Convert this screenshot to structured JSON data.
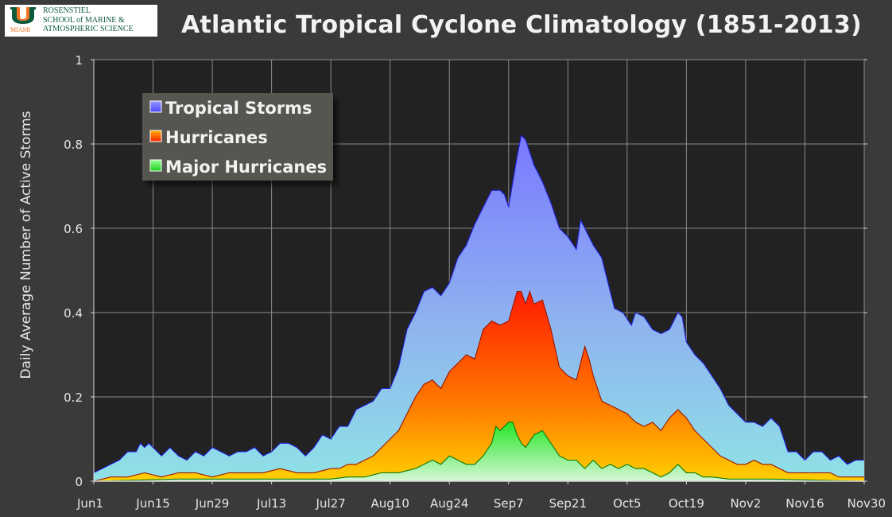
{
  "header": {
    "title": "Atlantic Tropical Cyclone Climatology (1851-2013)",
    "logo_city": "MIAMI",
    "logo_org_lines": [
      "ROSENSTIEL",
      "SCHOOL of MARINE &",
      "ATMOSPHERIC SCIENCE"
    ]
  },
  "chart_data": {
    "type": "area",
    "title": "Atlantic Tropical Cyclone Climatology (1851-2013)",
    "xlabel": "",
    "ylabel": "Daily Average Number of Active Storms",
    "ylim": [
      0,
      1
    ],
    "yticks": [
      0,
      0.2,
      0.4,
      0.6,
      0.8,
      1
    ],
    "ytick_labels": [
      "0",
      "0.2",
      "0.4",
      "0.6",
      "0.8",
      "1"
    ],
    "xlim_days": [
      0,
      182
    ],
    "xticks": [
      {
        "label": "Jun1",
        "day": 0
      },
      {
        "label": "Jun15",
        "day": 14
      },
      {
        "label": "Jun29",
        "day": 28
      },
      {
        "label": "Jul13",
        "day": 42
      },
      {
        "label": "Jul27",
        "day": 56
      },
      {
        "label": "Aug10",
        "day": 70
      },
      {
        "label": "Aug24",
        "day": 84
      },
      {
        "label": "Sep7",
        "day": 98
      },
      {
        "label": "Sep21",
        "day": 112
      },
      {
        "label": "Oct5",
        "day": 126
      },
      {
        "label": "Oct19",
        "day": 140
      },
      {
        "label": "Nov2",
        "day": 154
      },
      {
        "label": "Nov16",
        "day": 168
      },
      {
        "label": "Nov30",
        "day": 182
      }
    ],
    "grid": true,
    "legend_position": "top-left",
    "series": [
      {
        "name": "Tropical Storms",
        "color": "#8080ff",
        "points": [
          [
            0,
            0.02
          ],
          [
            2,
            0.03
          ],
          [
            4,
            0.04
          ],
          [
            6,
            0.05
          ],
          [
            8,
            0.07
          ],
          [
            10,
            0.07
          ],
          [
            11,
            0.09
          ],
          [
            12,
            0.08
          ],
          [
            13,
            0.09
          ],
          [
            14,
            0.08
          ],
          [
            16,
            0.06
          ],
          [
            18,
            0.08
          ],
          [
            20,
            0.06
          ],
          [
            22,
            0.05
          ],
          [
            24,
            0.07
          ],
          [
            26,
            0.06
          ],
          [
            28,
            0.08
          ],
          [
            30,
            0.07
          ],
          [
            32,
            0.06
          ],
          [
            34,
            0.07
          ],
          [
            36,
            0.07
          ],
          [
            38,
            0.08
          ],
          [
            40,
            0.06
          ],
          [
            42,
            0.07
          ],
          [
            44,
            0.09
          ],
          [
            46,
            0.09
          ],
          [
            48,
            0.08
          ],
          [
            50,
            0.06
          ],
          [
            52,
            0.08
          ],
          [
            54,
            0.11
          ],
          [
            56,
            0.1
          ],
          [
            58,
            0.13
          ],
          [
            60,
            0.13
          ],
          [
            62,
            0.17
          ],
          [
            64,
            0.18
          ],
          [
            66,
            0.19
          ],
          [
            68,
            0.22
          ],
          [
            70,
            0.22
          ],
          [
            72,
            0.27
          ],
          [
            74,
            0.36
          ],
          [
            76,
            0.4
          ],
          [
            78,
            0.45
          ],
          [
            80,
            0.46
          ],
          [
            82,
            0.44
          ],
          [
            84,
            0.47
          ],
          [
            86,
            0.53
          ],
          [
            88,
            0.56
          ],
          [
            90,
            0.61
          ],
          [
            92,
            0.65
          ],
          [
            94,
            0.69
          ],
          [
            96,
            0.69
          ],
          [
            97,
            0.68
          ],
          [
            98,
            0.65
          ],
          [
            100,
            0.77
          ],
          [
            101,
            0.82
          ],
          [
            102,
            0.81
          ],
          [
            104,
            0.75
          ],
          [
            106,
            0.71
          ],
          [
            108,
            0.66
          ],
          [
            110,
            0.6
          ],
          [
            112,
            0.58
          ],
          [
            114,
            0.55
          ],
          [
            115,
            0.62
          ],
          [
            116,
            0.6
          ],
          [
            118,
            0.56
          ],
          [
            120,
            0.53
          ],
          [
            122,
            0.45
          ],
          [
            123,
            0.41
          ],
          [
            125,
            0.4
          ],
          [
            127,
            0.37
          ],
          [
            128,
            0.4
          ],
          [
            130,
            0.39
          ],
          [
            132,
            0.36
          ],
          [
            134,
            0.35
          ],
          [
            136,
            0.36
          ],
          [
            138,
            0.4
          ],
          [
            139,
            0.39
          ],
          [
            140,
            0.33
          ],
          [
            142,
            0.3
          ],
          [
            144,
            0.28
          ],
          [
            146,
            0.25
          ],
          [
            148,
            0.22
          ],
          [
            150,
            0.18
          ],
          [
            152,
            0.16
          ],
          [
            154,
            0.14
          ],
          [
            156,
            0.14
          ],
          [
            158,
            0.13
          ],
          [
            160,
            0.15
          ],
          [
            162,
            0.13
          ],
          [
            164,
            0.07
          ],
          [
            166,
            0.07
          ],
          [
            168,
            0.05
          ],
          [
            170,
            0.07
          ],
          [
            172,
            0.07
          ],
          [
            174,
            0.05
          ],
          [
            176,
            0.06
          ],
          [
            178,
            0.04
          ],
          [
            180,
            0.05
          ],
          [
            182,
            0.05
          ]
        ]
      },
      {
        "name": "Hurricanes",
        "color": "#ff3300",
        "points": [
          [
            0,
            0
          ],
          [
            4,
            0.01
          ],
          [
            8,
            0.01
          ],
          [
            12,
            0.02
          ],
          [
            16,
            0.01
          ],
          [
            20,
            0.02
          ],
          [
            24,
            0.02
          ],
          [
            28,
            0.01
          ],
          [
            32,
            0.02
          ],
          [
            36,
            0.02
          ],
          [
            40,
            0.02
          ],
          [
            44,
            0.03
          ],
          [
            48,
            0.02
          ],
          [
            52,
            0.02
          ],
          [
            56,
            0.03
          ],
          [
            58,
            0.03
          ],
          [
            60,
            0.04
          ],
          [
            62,
            0.04
          ],
          [
            64,
            0.05
          ],
          [
            66,
            0.06
          ],
          [
            68,
            0.08
          ],
          [
            70,
            0.1
          ],
          [
            72,
            0.12
          ],
          [
            74,
            0.16
          ],
          [
            76,
            0.2
          ],
          [
            78,
            0.23
          ],
          [
            80,
            0.24
          ],
          [
            82,
            0.22
          ],
          [
            84,
            0.26
          ],
          [
            86,
            0.28
          ],
          [
            88,
            0.3
          ],
          [
            90,
            0.29
          ],
          [
            92,
            0.36
          ],
          [
            94,
            0.38
          ],
          [
            96,
            0.37
          ],
          [
            98,
            0.38
          ],
          [
            100,
            0.45
          ],
          [
            101,
            0.45
          ],
          [
            102,
            0.42
          ],
          [
            103,
            0.45
          ],
          [
            104,
            0.42
          ],
          [
            106,
            0.43
          ],
          [
            108,
            0.36
          ],
          [
            110,
            0.27
          ],
          [
            112,
            0.25
          ],
          [
            114,
            0.24
          ],
          [
            116,
            0.32
          ],
          [
            117,
            0.29
          ],
          [
            118,
            0.25
          ],
          [
            120,
            0.19
          ],
          [
            122,
            0.18
          ],
          [
            124,
            0.17
          ],
          [
            126,
            0.16
          ],
          [
            128,
            0.14
          ],
          [
            130,
            0.13
          ],
          [
            132,
            0.14
          ],
          [
            134,
            0.12
          ],
          [
            136,
            0.15
          ],
          [
            138,
            0.17
          ],
          [
            140,
            0.15
          ],
          [
            142,
            0.12
          ],
          [
            144,
            0.1
          ],
          [
            146,
            0.08
          ],
          [
            148,
            0.06
          ],
          [
            150,
            0.05
          ],
          [
            152,
            0.04
          ],
          [
            154,
            0.04
          ],
          [
            156,
            0.05
          ],
          [
            158,
            0.04
          ],
          [
            160,
            0.04
          ],
          [
            162,
            0.03
          ],
          [
            164,
            0.02
          ],
          [
            166,
            0.02
          ],
          [
            168,
            0.02
          ],
          [
            170,
            0.02
          ],
          [
            172,
            0.02
          ],
          [
            174,
            0.02
          ],
          [
            176,
            0.01
          ],
          [
            178,
            0.01
          ],
          [
            180,
            0.01
          ],
          [
            182,
            0.01
          ]
        ]
      },
      {
        "name": "Major Hurricanes",
        "color": "#33ee33",
        "points": [
          [
            0,
            0
          ],
          [
            20,
            0.005
          ],
          [
            40,
            0.005
          ],
          [
            56,
            0.005
          ],
          [
            60,
            0.01
          ],
          [
            64,
            0.01
          ],
          [
            68,
            0.02
          ],
          [
            72,
            0.02
          ],
          [
            76,
            0.03
          ],
          [
            80,
            0.05
          ],
          [
            82,
            0.04
          ],
          [
            84,
            0.06
          ],
          [
            86,
            0.05
          ],
          [
            88,
            0.04
          ],
          [
            90,
            0.04
          ],
          [
            92,
            0.06
          ],
          [
            94,
            0.09
          ],
          [
            95,
            0.13
          ],
          [
            96,
            0.12
          ],
          [
            98,
            0.14
          ],
          [
            99,
            0.14
          ],
          [
            100,
            0.11
          ],
          [
            101,
            0.09
          ],
          [
            102,
            0.08
          ],
          [
            104,
            0.11
          ],
          [
            106,
            0.12
          ],
          [
            108,
            0.09
          ],
          [
            110,
            0.06
          ],
          [
            112,
            0.05
          ],
          [
            114,
            0.05
          ],
          [
            116,
            0.03
          ],
          [
            118,
            0.05
          ],
          [
            120,
            0.03
          ],
          [
            122,
            0.04
          ],
          [
            124,
            0.03
          ],
          [
            126,
            0.04
          ],
          [
            128,
            0.03
          ],
          [
            130,
            0.03
          ],
          [
            132,
            0.02
          ],
          [
            134,
            0.01
          ],
          [
            136,
            0.02
          ],
          [
            138,
            0.04
          ],
          [
            140,
            0.02
          ],
          [
            142,
            0.02
          ],
          [
            144,
            0.01
          ],
          [
            146,
            0.01
          ],
          [
            150,
            0.005
          ],
          [
            160,
            0.005
          ],
          [
            182,
            0
          ]
        ]
      }
    ]
  }
}
